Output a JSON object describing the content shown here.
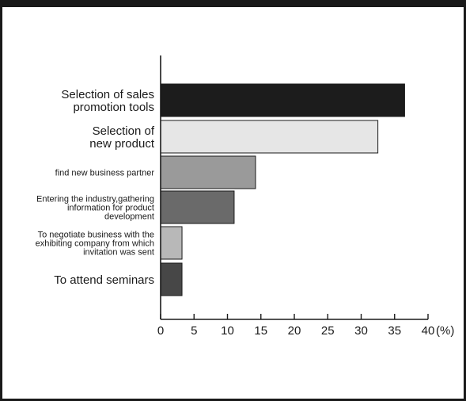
{
  "chart_data": {
    "type": "bar",
    "orientation": "horizontal",
    "categories": [
      [
        "Selection of sales",
        "promotion tools"
      ],
      [
        "Selection of",
        "new product"
      ],
      [
        "find new business partner"
      ],
      [
        "Entering the industry,gathering",
        "information for product",
        "development"
      ],
      [
        "To negotiate business with the",
        "exhibiting company from which",
        "invitation was sent"
      ],
      [
        "To attend seminars"
      ]
    ],
    "values": [
      36.5,
      32.5,
      14.2,
      11,
      3.2,
      3.2
    ],
    "bar_colors": [
      "#1c1c1c",
      "#e6e6e6",
      "#9a9a9a",
      "#6a6a6a",
      "#b8b8b8",
      "#474747"
    ],
    "xlim": [
      0,
      40
    ],
    "xticks": [
      0,
      5,
      10,
      15,
      20,
      25,
      30,
      35,
      40
    ],
    "unit_label": "(%)",
    "grid": false,
    "title": "",
    "xlabel": "",
    "ylabel": ""
  }
}
